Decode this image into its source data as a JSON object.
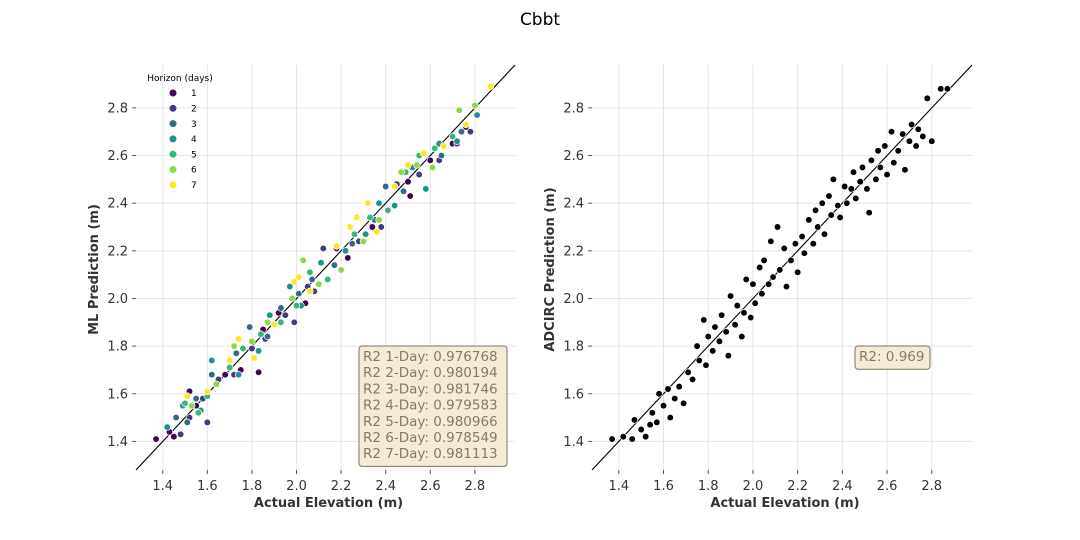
{
  "figure": {
    "title": "Cbbt"
  },
  "colors": {
    "grid": "#e5e5e5",
    "diagonal": "#000000",
    "stat_box_fill": "#f5ebd6",
    "stat_box_edge": "#7d7460",
    "stat_text": "#8a7a5c",
    "horizons": [
      "#440154",
      "#443983",
      "#31688e",
      "#21918c",
      "#35b779",
      "#8fd744",
      "#fde725"
    ],
    "adcirc_points": "#000000"
  },
  "chart_data": [
    {
      "type": "scatter",
      "xlabel": "Actual Elevation (m)",
      "ylabel": "ML Prediction (m)",
      "xlim": [
        1.28,
        2.98
      ],
      "ylim": [
        1.28,
        2.98
      ],
      "xticks": [
        "1.4",
        "1.6",
        "1.8",
        "2.0",
        "2.2",
        "2.4",
        "2.6",
        "2.8"
      ],
      "yticks": [
        "1.4",
        "1.6",
        "1.8",
        "2.0",
        "2.2",
        "2.4",
        "2.6",
        "2.8"
      ],
      "grid": true,
      "diagonal_line": true,
      "legend": {
        "title": "Horizon (days)",
        "placement": "top-left",
        "entries": [
          "1",
          "2",
          "3",
          "4",
          "5",
          "6",
          "7"
        ]
      },
      "annotation_box": [
        "R2 1-Day: 0.976768",
        "R2 2-Day: 0.980194",
        "R2 3-Day: 0.981746",
        "R2 4-Day: 0.979583",
        "R2 5-Day: 0.980966",
        "R2 6-Day: 0.978549",
        "R2 7-Day: 0.981113"
      ],
      "series": [
        {
          "name": "1",
          "points": [
            [
              1.37,
              1.41
            ],
            [
              1.43,
              1.44
            ],
            [
              1.45,
              1.42
            ],
            [
              1.52,
              1.61
            ],
            [
              1.55,
              1.55
            ],
            [
              1.68,
              1.68
            ],
            [
              1.75,
              1.7
            ],
            [
              1.83,
              1.69
            ],
            [
              1.85,
              1.87
            ],
            [
              1.92,
              1.94
            ],
            [
              2.04,
              1.98
            ],
            [
              2.18,
              2.21
            ],
            [
              2.23,
              2.17
            ],
            [
              2.34,
              2.3
            ],
            [
              2.5,
              2.49
            ],
            [
              2.51,
              2.43
            ],
            [
              2.6,
              2.58
            ],
            [
              2.7,
              2.65
            ],
            [
              2.76,
              2.72
            ]
          ]
        },
        {
          "name": "2",
          "points": [
            [
              1.48,
              1.43
            ],
            [
              1.52,
              1.5
            ],
            [
              1.58,
              1.58
            ],
            [
              1.6,
              1.48
            ],
            [
              1.65,
              1.66
            ],
            [
              1.72,
              1.68
            ],
            [
              1.8,
              1.79
            ],
            [
              1.86,
              1.83
            ],
            [
              1.95,
              1.93
            ],
            [
              1.99,
              1.9
            ],
            [
              2.05,
              2.05
            ],
            [
              2.08,
              2.03
            ],
            [
              2.12,
              2.21
            ],
            [
              2.28,
              2.24
            ],
            [
              2.38,
              2.3
            ],
            [
              2.45,
              2.48
            ],
            [
              2.55,
              2.52
            ],
            [
              2.64,
              2.58
            ],
            [
              2.72,
              2.65
            ],
            [
              2.78,
              2.7
            ]
          ]
        },
        {
          "name": "3",
          "points": [
            [
              1.46,
              1.5
            ],
            [
              1.51,
              1.48
            ],
            [
              1.55,
              1.58
            ],
            [
              1.62,
              1.68
            ],
            [
              1.73,
              1.77
            ],
            [
              1.79,
              1.88
            ],
            [
              1.87,
              1.84
            ],
            [
              1.93,
              1.96
            ],
            [
              2.01,
              2.02
            ],
            [
              2.07,
              2.08
            ],
            [
              2.17,
              2.14
            ],
            [
              2.25,
              2.23
            ],
            [
              2.35,
              2.33
            ],
            [
              2.4,
              2.47
            ],
            [
              2.48,
              2.45
            ],
            [
              2.57,
              2.61
            ],
            [
              2.65,
              2.6
            ],
            [
              2.74,
              2.7
            ]
          ]
        },
        {
          "name": "4",
          "points": [
            [
              1.42,
              1.46
            ],
            [
              1.49,
              1.55
            ],
            [
              1.57,
              1.53
            ],
            [
              1.62,
              1.74
            ],
            [
              1.74,
              1.68
            ],
            [
              1.83,
              1.78
            ],
            [
              1.88,
              1.93
            ],
            [
              1.97,
              2.05
            ],
            [
              2.02,
              1.97
            ],
            [
              2.11,
              2.15
            ],
            [
              2.22,
              2.2
            ],
            [
              2.31,
              2.27
            ],
            [
              2.37,
              2.4
            ],
            [
              2.44,
              2.39
            ],
            [
              2.52,
              2.55
            ],
            [
              2.58,
              2.46
            ],
            [
              2.64,
              2.65
            ],
            [
              2.72,
              2.66
            ],
            [
              2.81,
              2.77
            ]
          ]
        },
        {
          "name": "5",
          "points": [
            [
              1.5,
              1.56
            ],
            [
              1.56,
              1.52
            ],
            [
              1.6,
              1.59
            ],
            [
              1.7,
              1.71
            ],
            [
              1.76,
              1.79
            ],
            [
              1.84,
              1.85
            ],
            [
              1.93,
              1.9
            ],
            [
              2.0,
              1.97
            ],
            [
              2.06,
              2.11
            ],
            [
              2.14,
              2.08
            ],
            [
              2.26,
              2.27
            ],
            [
              2.33,
              2.34
            ],
            [
              2.41,
              2.37
            ],
            [
              2.49,
              2.53
            ],
            [
              2.55,
              2.6
            ],
            [
              2.62,
              2.63
            ],
            [
              2.7,
              2.68
            ]
          ]
        },
        {
          "name": "6",
          "points": [
            [
              1.53,
              1.55
            ],
            [
              1.64,
              1.64
            ],
            [
              1.72,
              1.8
            ],
            [
              1.8,
              1.82
            ],
            [
              1.87,
              1.9
            ],
            [
              1.98,
              2.0
            ],
            [
              2.03,
              2.16
            ],
            [
              2.1,
              2.06
            ],
            [
              2.2,
              2.12
            ],
            [
              2.3,
              2.24
            ],
            [
              2.37,
              2.33
            ],
            [
              2.47,
              2.53
            ],
            [
              2.54,
              2.56
            ],
            [
              2.61,
              2.55
            ],
            [
              2.73,
              2.79
            ],
            [
              2.8,
              2.81
            ]
          ]
        },
        {
          "name": "7",
          "points": [
            [
              1.51,
              1.59
            ],
            [
              1.6,
              1.61
            ],
            [
              1.7,
              1.74
            ],
            [
              1.74,
              1.83
            ],
            [
              1.81,
              1.75
            ],
            [
              1.9,
              1.89
            ],
            [
              1.99,
              2.07
            ],
            [
              2.01,
              2.09
            ],
            [
              2.06,
              2.03
            ],
            [
              2.18,
              2.22
            ],
            [
              2.24,
              2.3
            ],
            [
              2.27,
              2.34
            ],
            [
              2.32,
              2.4
            ],
            [
              2.36,
              2.28
            ],
            [
              2.44,
              2.47
            ],
            [
              2.5,
              2.56
            ],
            [
              2.57,
              2.61
            ],
            [
              2.66,
              2.64
            ],
            [
              2.76,
              2.73
            ],
            [
              2.87,
              2.89
            ]
          ]
        }
      ]
    },
    {
      "type": "scatter",
      "xlabel": "Actual Elevation (m)",
      "ylabel": "ADCIRC Prediction (m)",
      "xlim": [
        1.28,
        2.98
      ],
      "ylim": [
        1.28,
        2.98
      ],
      "xticks": [
        "1.4",
        "1.6",
        "1.8",
        "2.0",
        "2.2",
        "2.4",
        "2.6",
        "2.8"
      ],
      "yticks": [
        "1.4",
        "1.6",
        "1.8",
        "2.0",
        "2.2",
        "2.4",
        "2.6",
        "2.8"
      ],
      "grid": true,
      "diagonal_line": true,
      "annotation_box": [
        "R2: 0.969"
      ],
      "series": [
        {
          "points": [
            [
              1.37,
              1.41
            ],
            [
              1.42,
              1.42
            ],
            [
              1.46,
              1.41
            ],
            [
              1.47,
              1.49
            ],
            [
              1.5,
              1.45
            ],
            [
              1.52,
              1.42
            ],
            [
              1.54,
              1.47
            ],
            [
              1.55,
              1.52
            ],
            [
              1.57,
              1.48
            ],
            [
              1.58,
              1.6
            ],
            [
              1.6,
              1.55
            ],
            [
              1.62,
              1.62
            ],
            [
              1.63,
              1.5
            ],
            [
              1.65,
              1.58
            ],
            [
              1.67,
              1.63
            ],
            [
              1.69,
              1.56
            ],
            [
              1.71,
              1.69
            ],
            [
              1.73,
              1.66
            ],
            [
              1.75,
              1.8
            ],
            [
              1.76,
              1.74
            ],
            [
              1.78,
              1.91
            ],
            [
              1.79,
              1.72
            ],
            [
              1.8,
              1.84
            ],
            [
              1.82,
              1.78
            ],
            [
              1.83,
              1.88
            ],
            [
              1.85,
              1.82
            ],
            [
              1.86,
              1.93
            ],
            [
              1.88,
              1.86
            ],
            [
              1.89,
              1.76
            ],
            [
              1.9,
              2.01
            ],
            [
              1.92,
              1.89
            ],
            [
              1.93,
              1.97
            ],
            [
              1.95,
              1.84
            ],
            [
              1.96,
              1.94
            ],
            [
              1.97,
              2.08
            ],
            [
              1.99,
              1.92
            ],
            [
              2.0,
              2.06
            ],
            [
              2.01,
              1.98
            ],
            [
              2.03,
              2.13
            ],
            [
              2.04,
              2.02
            ],
            [
              2.05,
              2.16
            ],
            [
              2.07,
              2.06
            ],
            [
              2.08,
              2.24
            ],
            [
              2.09,
              2.09
            ],
            [
              2.11,
              2.3
            ],
            [
              2.12,
              2.12
            ],
            [
              2.14,
              2.21
            ],
            [
              2.15,
              2.05
            ],
            [
              2.17,
              2.16
            ],
            [
              2.19,
              2.23
            ],
            [
              2.2,
              2.11
            ],
            [
              2.22,
              2.26
            ],
            [
              2.23,
              2.19
            ],
            [
              2.25,
              2.33
            ],
            [
              2.27,
              2.23
            ],
            [
              2.28,
              2.37
            ],
            [
              2.29,
              2.3
            ],
            [
              2.31,
              2.4
            ],
            [
              2.32,
              2.27
            ],
            [
              2.34,
              2.43
            ],
            [
              2.35,
              2.35
            ],
            [
              2.36,
              2.5
            ],
            [
              2.38,
              2.39
            ],
            [
              2.39,
              2.34
            ],
            [
              2.41,
              2.47
            ],
            [
              2.42,
              2.4
            ],
            [
              2.44,
              2.46
            ],
            [
              2.45,
              2.53
            ],
            [
              2.46,
              2.42
            ],
            [
              2.48,
              2.49
            ],
            [
              2.49,
              2.55
            ],
            [
              2.51,
              2.46
            ],
            [
              2.52,
              2.36
            ],
            [
              2.53,
              2.58
            ],
            [
              2.55,
              2.5
            ],
            [
              2.56,
              2.62
            ],
            [
              2.57,
              2.55
            ],
            [
              2.59,
              2.64
            ],
            [
              2.6,
              2.52
            ],
            [
              2.62,
              2.7
            ],
            [
              2.63,
              2.57
            ],
            [
              2.65,
              2.62
            ],
            [
              2.67,
              2.69
            ],
            [
              2.68,
              2.54
            ],
            [
              2.7,
              2.66
            ],
            [
              2.71,
              2.73
            ],
            [
              2.73,
              2.64
            ],
            [
              2.74,
              2.71
            ],
            [
              2.76,
              2.68
            ],
            [
              2.78,
              2.84
            ],
            [
              2.8,
              2.66
            ],
            [
              2.84,
              2.88
            ],
            [
              2.87,
              2.88
            ]
          ]
        }
      ]
    }
  ]
}
